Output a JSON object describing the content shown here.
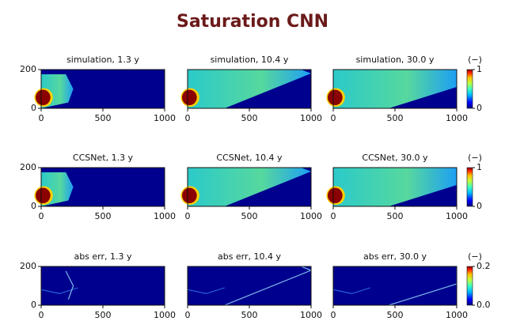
{
  "chart_data": {
    "type": "heatmap-grid",
    "title": "Saturation CNN",
    "panels": [
      {
        "type": "heatmap",
        "title": "simulation, 1.3 y",
        "xlim": [
          0,
          1000
        ],
        "ylim": [
          0,
          200
        ],
        "xticks": [
          0,
          500,
          1000
        ],
        "yticks": [
          0,
          200
        ]
      },
      {
        "type": "heatmap",
        "title": "simulation, 10.4 y",
        "xlim": [
          0,
          1000
        ],
        "ylim": [
          0,
          200
        ],
        "xticks": [
          0,
          500,
          1000
        ]
      },
      {
        "type": "heatmap",
        "title": "simulation, 30.0 y",
        "xlim": [
          0,
          1000
        ],
        "ylim": [
          0,
          200
        ],
        "xticks": [
          0,
          500,
          1000
        ]
      },
      {
        "type": "heatmap",
        "title": "CCSNet, 1.3 y",
        "xlim": [
          0,
          1000
        ],
        "ylim": [
          0,
          200
        ],
        "xticks": [
          0,
          500,
          1000
        ],
        "yticks": [
          0,
          200
        ]
      },
      {
        "type": "heatmap",
        "title": "CCSNet, 10.4 y",
        "xlim": [
          0,
          1000
        ],
        "ylim": [
          0,
          200
        ],
        "xticks": [
          0,
          500,
          1000
        ]
      },
      {
        "type": "heatmap",
        "title": "CCSNet, 30.0 y",
        "xlim": [
          0,
          1000
        ],
        "ylim": [
          0,
          200
        ],
        "xticks": [
          0,
          500,
          1000
        ]
      },
      {
        "type": "heatmap",
        "title": "abs err, 1.3 y",
        "xlim": [
          0,
          1000
        ],
        "ylim": [
          0,
          200
        ],
        "xticks": [
          0,
          500,
          1000
        ],
        "yticks": [
          0,
          200
        ]
      },
      {
        "type": "heatmap",
        "title": "abs err, 10.4 y",
        "xlim": [
          0,
          1000
        ],
        "ylim": [
          0,
          200
        ],
        "xticks": [
          0,
          500,
          1000
        ]
      },
      {
        "type": "heatmap",
        "title": "abs err, 30.0 y",
        "xlim": [
          0,
          1000
        ],
        "ylim": [
          0,
          200
        ],
        "xticks": [
          0,
          500,
          1000
        ]
      }
    ],
    "colorbars": [
      {
        "label": "(−)",
        "lim": [
          0,
          1
        ],
        "ticks": [
          0,
          1
        ]
      },
      {
        "label": "(−)",
        "lim": [
          0,
          1
        ],
        "ticks": [
          0,
          1
        ]
      },
      {
        "label": "(−)",
        "lim": [
          0,
          0.2
        ],
        "ticks": [
          {
            "value": 0,
            "label": "0.0"
          },
          {
            "value": 0.2,
            "label": "0.2"
          }
        ]
      }
    ]
  }
}
